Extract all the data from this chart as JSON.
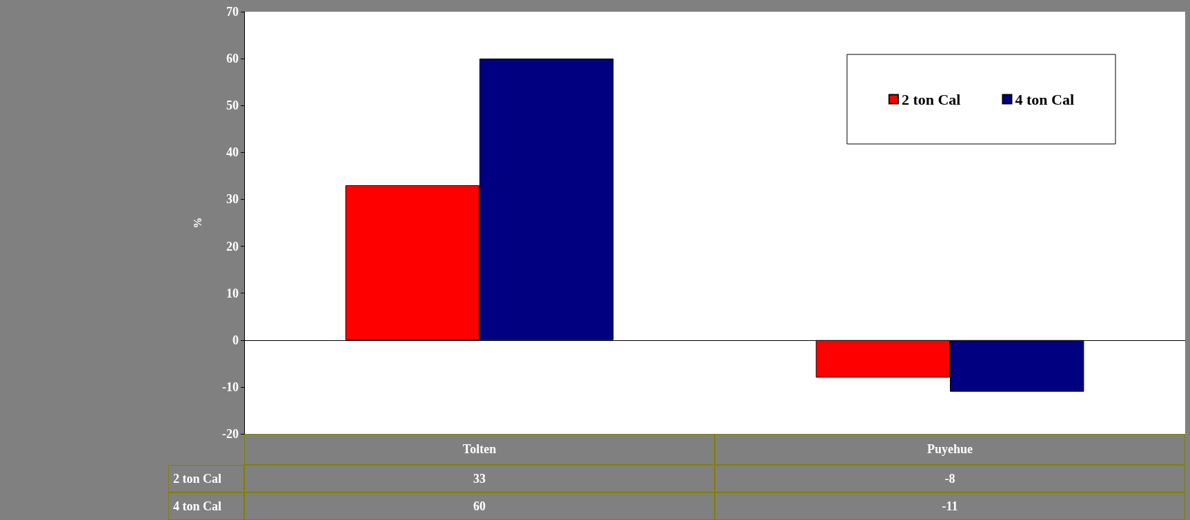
{
  "chart_data": {
    "type": "bar",
    "ylabel": "%",
    "categories": [
      "Tolten",
      "Puyehue"
    ],
    "series": [
      {
        "name": "2 ton Cal",
        "color": "#ff0000",
        "values": [
          33,
          -8
        ]
      },
      {
        "name": "4 ton Cal",
        "color": "#000080",
        "values": [
          60,
          -11
        ]
      }
    ],
    "ylim": [
      -20,
      70
    ],
    "yticks": [
      -20,
      -10,
      0,
      10,
      20,
      30,
      40,
      50,
      60,
      70
    ],
    "data_labels": true,
    "legend": "top right"
  }
}
